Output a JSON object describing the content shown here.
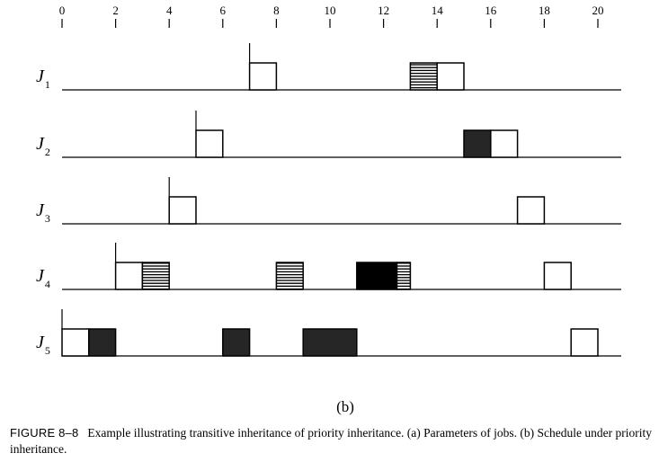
{
  "axis": {
    "min": 0,
    "max": 20,
    "tick_labels": [
      "0",
      "2",
      "4",
      "6",
      "8",
      "10",
      "12",
      "14",
      "16",
      "18",
      "20"
    ]
  },
  "jobs": [
    {
      "name": "J",
      "sub": "1",
      "release": 7,
      "segments": [
        {
          "start": 7,
          "end": 8,
          "fill": "white"
        },
        {
          "start": 13,
          "end": 14,
          "fill": "hatch"
        },
        {
          "start": 14,
          "end": 15,
          "fill": "white"
        }
      ]
    },
    {
      "name": "J",
      "sub": "2",
      "release": 5,
      "segments": [
        {
          "start": 5,
          "end": 6,
          "fill": "white"
        },
        {
          "start": 15,
          "end": 16,
          "fill": "dark"
        },
        {
          "start": 16,
          "end": 17,
          "fill": "white"
        }
      ]
    },
    {
      "name": "J",
      "sub": "3",
      "release": 4,
      "segments": [
        {
          "start": 4,
          "end": 5,
          "fill": "white"
        },
        {
          "start": 17,
          "end": 18,
          "fill": "white"
        }
      ]
    },
    {
      "name": "J",
      "sub": "4",
      "release": 2,
      "segments": [
        {
          "start": 2,
          "end": 3,
          "fill": "white"
        },
        {
          "start": 3,
          "end": 4,
          "fill": "hatch"
        },
        {
          "start": 8,
          "end": 9,
          "fill": "hatch"
        },
        {
          "start": 11,
          "end": 12.5,
          "fill": "black"
        },
        {
          "start": 12.5,
          "end": 13,
          "fill": "hatch"
        },
        {
          "start": 18,
          "end": 19,
          "fill": "white"
        }
      ]
    },
    {
      "name": "J",
      "sub": "5",
      "release": 0,
      "segments": [
        {
          "start": 0,
          "end": 1,
          "fill": "white"
        },
        {
          "start": 1,
          "end": 2,
          "fill": "dark"
        },
        {
          "start": 6,
          "end": 7,
          "fill": "dark"
        },
        {
          "start": 9,
          "end": 11,
          "fill": "dark"
        },
        {
          "start": 19,
          "end": 20,
          "fill": "white"
        }
      ]
    }
  ],
  "fills": {
    "white": "#ffffff",
    "dark": "#262626",
    "black": "#000000",
    "hatch_line": "#000000"
  },
  "sub_label": "(b)",
  "caption": {
    "figure_number": "FIGURE 8–8",
    "text": "Example illustrating transitive inheritance of priority inheritance. (a) Parameters of jobs. (b) Schedule under priority inheritance."
  }
}
